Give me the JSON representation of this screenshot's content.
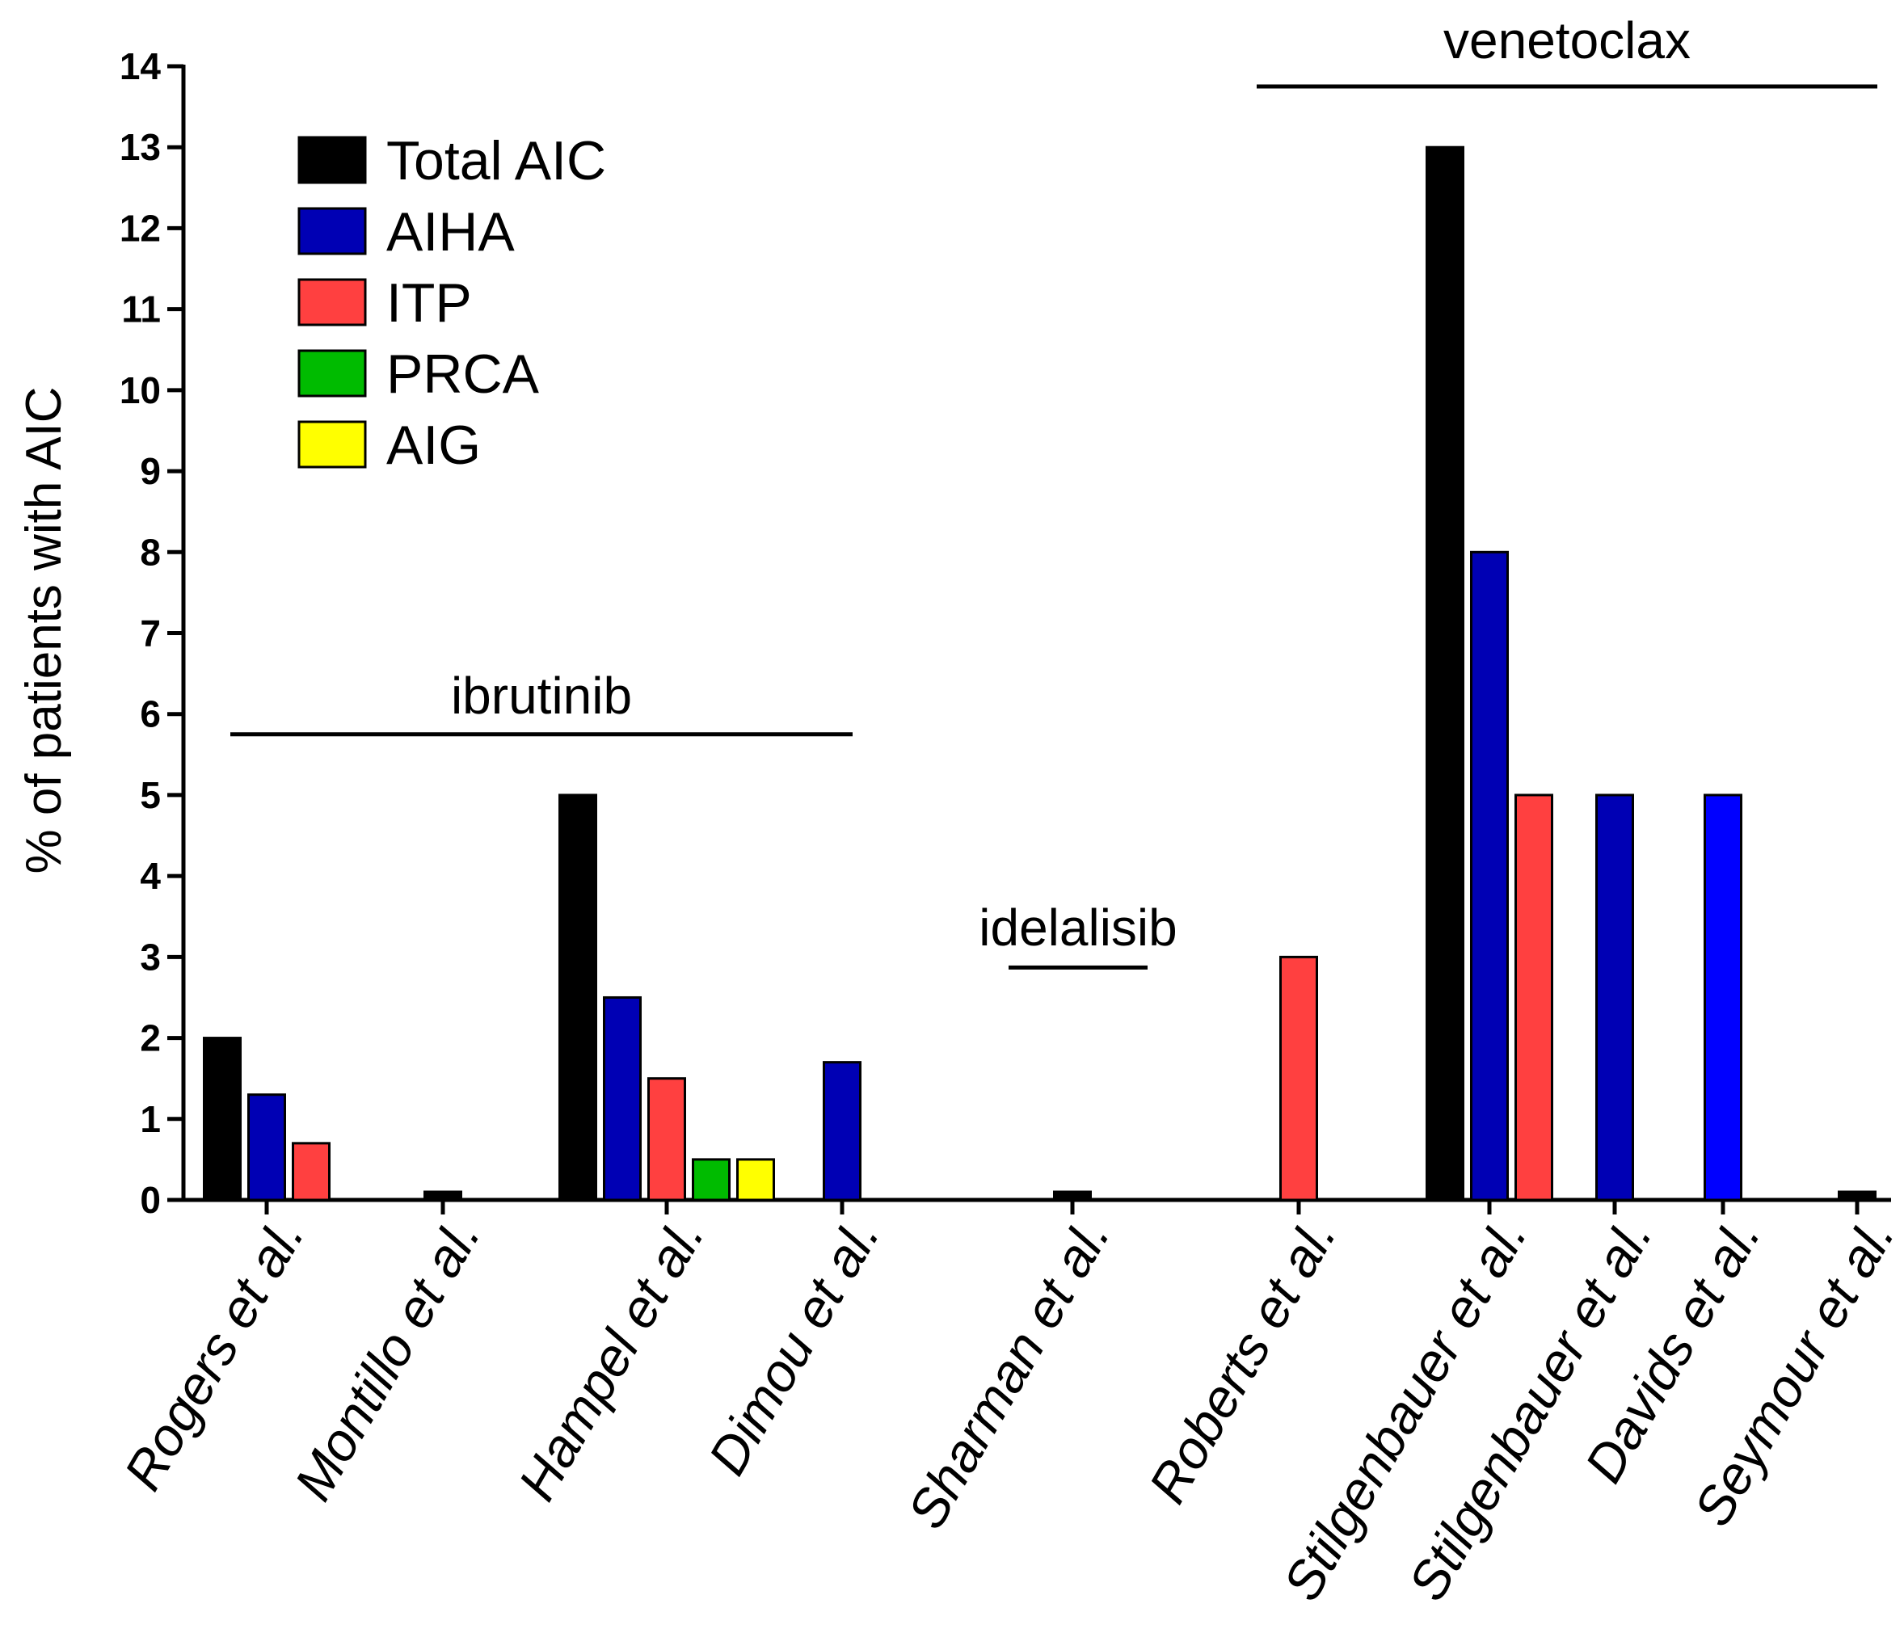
{
  "chart_data": {
    "type": "bar",
    "title": "",
    "xlabel": "",
    "ylabel": "% of patients with AIC",
    "ylim": [
      0,
      14
    ],
    "yticks": [
      0,
      1,
      2,
      3,
      4,
      5,
      6,
      7,
      8,
      9,
      10,
      11,
      12,
      13,
      14
    ],
    "grid": false,
    "legend_position": "top-left",
    "categories": [
      "Rogers et al.",
      "Montillo et al.",
      "Hampel et al.",
      "Dimou et al.",
      "Sharman et al.",
      "Roberts et al.",
      "Stilgenbauer et al.",
      "Stilgenbauer et al.",
      "Davids et al.",
      "Seymour et al."
    ],
    "series": [
      {
        "name": "Total AIC",
        "color": "#000000",
        "values": [
          2,
          0.1,
          5,
          null,
          0.1,
          null,
          13,
          null,
          null,
          0.1
        ]
      },
      {
        "name": "AIHA",
        "color": "#0000b4",
        "values": [
          1.3,
          null,
          2.5,
          1.7,
          null,
          null,
          8,
          5,
          5,
          null
        ]
      },
      {
        "name": "ITP",
        "color": "#ff4040",
        "values": [
          0.7,
          null,
          1.5,
          null,
          null,
          3,
          5,
          null,
          null,
          null
        ]
      },
      {
        "name": "PRCA",
        "color": "#00bb00",
        "values": [
          null,
          null,
          0.5,
          null,
          null,
          null,
          null,
          null,
          null,
          null
        ]
      },
      {
        "name": "AIG",
        "color": "#ffff00",
        "values": [
          null,
          null,
          0.5,
          null,
          null,
          null,
          null,
          null,
          null,
          null
        ]
      }
    ],
    "bar_colors_override": [
      {
        "category": 8,
        "series": 1,
        "color": "#0000ff"
      }
    ],
    "groups": [
      {
        "label": "ibrutinib",
        "from_category": 0,
        "to_category": 3,
        "at_value": 5.75
      },
      {
        "label": "idelalisib",
        "from_category": 4,
        "to_category": 4,
        "at_value": 2.87
      },
      {
        "label": "venetoclax",
        "from_category": 6,
        "to_category": 9,
        "at_value": 13.75
      }
    ]
  }
}
